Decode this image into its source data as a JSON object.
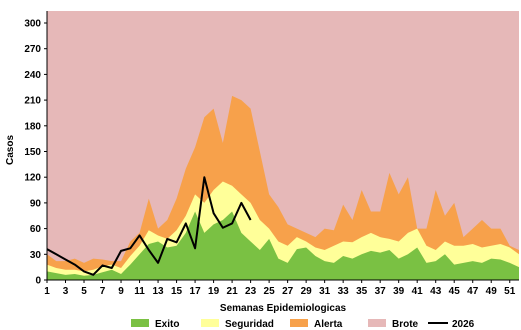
{
  "chart_data": {
    "type": "area",
    "xlabel": "Semanas Epidemiologicas",
    "ylabel": "Casos",
    "ylim": [
      0,
      300
    ],
    "yticks": [
      0,
      30,
      60,
      90,
      120,
      150,
      180,
      210,
      240,
      270,
      300
    ],
    "xlim": [
      1,
      52
    ],
    "xticks": [
      1,
      3,
      5,
      7,
      9,
      11,
      13,
      15,
      17,
      19,
      21,
      23,
      25,
      27,
      29,
      31,
      33,
      35,
      37,
      39,
      41,
      43,
      45,
      47,
      49,
      51
    ],
    "x": [
      1,
      2,
      3,
      4,
      5,
      6,
      7,
      8,
      9,
      10,
      11,
      12,
      13,
      14,
      15,
      16,
      17,
      18,
      19,
      20,
      21,
      22,
      23,
      24,
      25,
      26,
      27,
      28,
      29,
      30,
      31,
      32,
      33,
      34,
      35,
      36,
      37,
      38,
      39,
      40,
      41,
      42,
      43,
      44,
      45,
      46,
      47,
      48,
      49,
      50,
      51,
      52
    ],
    "series": [
      {
        "name": "Exito",
        "color": "#7ac143",
        "values": [
          10,
          8,
          6,
          7,
          5,
          6,
          9,
          12,
          7,
          18,
          30,
          42,
          45,
          38,
          40,
          55,
          80,
          55,
          65,
          70,
          80,
          55,
          45,
          35,
          48,
          25,
          20,
          36,
          38,
          28,
          22,
          20,
          28,
          25,
          30,
          34,
          32,
          35,
          25,
          30,
          38,
          20,
          22,
          30,
          18,
          20,
          22,
          20,
          25,
          24,
          20,
          15
        ]
      },
      {
        "name": "Seguridad",
        "color": "#ffff99",
        "values": [
          18,
          14,
          12,
          12,
          10,
          12,
          16,
          18,
          14,
          28,
          40,
          58,
          52,
          48,
          58,
          75,
          100,
          90,
          105,
          115,
          110,
          100,
          90,
          70,
          60,
          45,
          40,
          50,
          45,
          38,
          35,
          40,
          45,
          44,
          50,
          55,
          50,
          48,
          45,
          55,
          60,
          40,
          35,
          45,
          40,
          40,
          42,
          38,
          40,
          42,
          38,
          30
        ]
      },
      {
        "name": "Alerta",
        "color": "#f7a14b",
        "values": [
          30,
          22,
          22,
          25,
          20,
          25,
          24,
          22,
          22,
          45,
          55,
          95,
          60,
          70,
          95,
          130,
          155,
          190,
          200,
          160,
          215,
          210,
          200,
          150,
          100,
          85,
          65,
          60,
          55,
          50,
          60,
          58,
          88,
          70,
          105,
          80,
          80,
          125,
          100,
          120,
          60,
          60,
          105,
          75,
          90,
          50,
          60,
          70,
          60,
          60,
          40,
          35
        ]
      },
      {
        "name": "Brote",
        "color": "#e6b8b8",
        "values": [
          315,
          315,
          315,
          315,
          315,
          315,
          315,
          315,
          315,
          315,
          315,
          315,
          315,
          315,
          315,
          315,
          315,
          315,
          315,
          315,
          315,
          315,
          315,
          315,
          315,
          315,
          315,
          315,
          315,
          315,
          315,
          315,
          315,
          315,
          315,
          315,
          315,
          315,
          315,
          315,
          315,
          315,
          315,
          315,
          315,
          315,
          315,
          315,
          315,
          315,
          315,
          315
        ]
      }
    ],
    "line_series": {
      "name": "2026",
      "color": "#000000",
      "x": [
        1,
        2,
        3,
        4,
        5,
        6,
        7,
        8,
        9,
        10,
        11,
        12,
        13,
        14,
        15,
        16,
        17,
        18,
        19,
        20,
        21,
        22,
        23,
        24
      ],
      "values": [
        36,
        30,
        24,
        18,
        10,
        6,
        17,
        14,
        34,
        37,
        52,
        35,
        20,
        48,
        44,
        66,
        37,
        120,
        78,
        61,
        66,
        90,
        70,
        null
      ]
    },
    "legend": {
      "placement": "bottom"
    }
  }
}
